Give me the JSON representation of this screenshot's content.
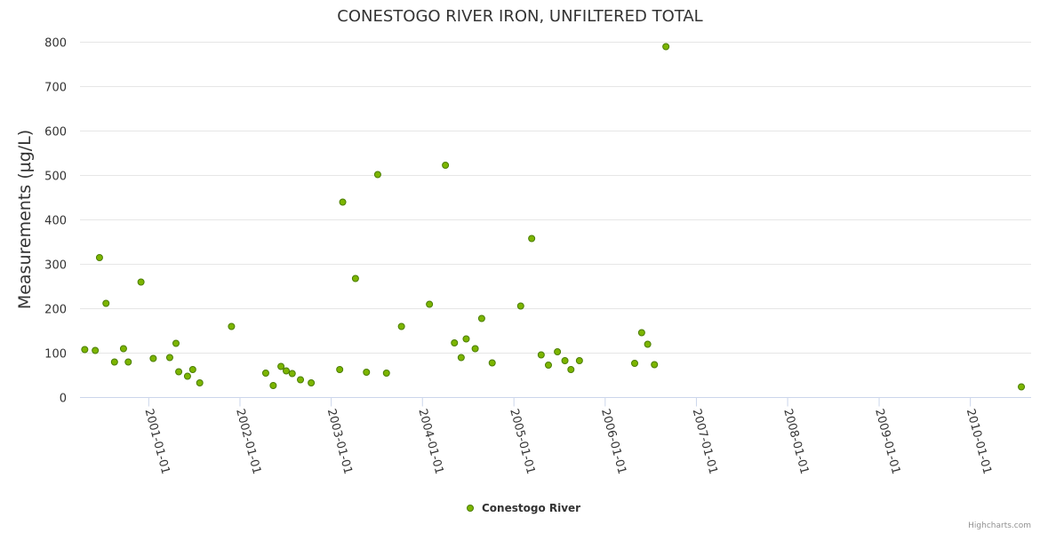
{
  "chart_data": {
    "type": "scatter",
    "title": "CONESTOGO RIVER IRON, UNFILTERED TOTAL",
    "xlabel": "",
    "ylabel": "Measurements (µg/L)",
    "ylim": [
      0,
      800
    ],
    "xlim": [
      "2000-04-01",
      "2010-09-01"
    ],
    "yticks": [
      "0",
      "100",
      "200",
      "300",
      "400",
      "500",
      "600",
      "700",
      "800"
    ],
    "xticks": [
      "2001-01-01",
      "2002-01-01",
      "2003-01-01",
      "2004-01-01",
      "2005-01-01",
      "2006-01-01",
      "2007-01-01",
      "2008-01-01",
      "2009-01-01",
      "2010-01-01"
    ],
    "grid": true,
    "legend_position": "bottom-center",
    "series": [
      {
        "name": "Conestogo River",
        "color": "#7cb500",
        "edge_color": "#4a7d00",
        "points": [
          [
            "2000-04-20",
            108
          ],
          [
            "2000-06-01",
            106
          ],
          [
            "2000-06-18",
            315
          ],
          [
            "2000-07-14",
            212
          ],
          [
            "2000-08-17",
            80
          ],
          [
            "2000-09-22",
            110
          ],
          [
            "2000-10-11",
            80
          ],
          [
            "2000-12-01",
            260
          ],
          [
            "2001-01-19",
            88
          ],
          [
            "2001-03-26",
            90
          ],
          [
            "2001-04-20",
            122
          ],
          [
            "2001-05-01",
            58
          ],
          [
            "2001-06-05",
            48
          ],
          [
            "2001-06-26",
            63
          ],
          [
            "2001-07-24",
            33
          ],
          [
            "2001-11-28",
            160
          ],
          [
            "2002-04-14",
            55
          ],
          [
            "2002-05-14",
            27
          ],
          [
            "2002-06-14",
            70
          ],
          [
            "2002-07-05",
            60
          ],
          [
            "2002-07-29",
            54
          ],
          [
            "2002-08-31",
            40
          ],
          [
            "2002-10-13",
            33
          ],
          [
            "2003-02-04",
            63
          ],
          [
            "2003-02-16",
            440
          ],
          [
            "2003-04-08",
            268
          ],
          [
            "2003-05-22",
            57
          ],
          [
            "2003-07-06",
            502
          ],
          [
            "2003-08-10",
            55
          ],
          [
            "2003-10-09",
            160
          ],
          [
            "2004-01-29",
            210
          ],
          [
            "2004-04-02",
            523
          ],
          [
            "2004-05-08",
            123
          ],
          [
            "2004-06-04",
            90
          ],
          [
            "2004-06-24",
            132
          ],
          [
            "2004-07-30",
            110
          ],
          [
            "2004-08-25",
            178
          ],
          [
            "2004-10-06",
            78
          ],
          [
            "2005-01-28",
            206
          ],
          [
            "2005-03-13",
            358
          ],
          [
            "2005-04-20",
            96
          ],
          [
            "2005-05-19",
            73
          ],
          [
            "2005-06-24",
            103
          ],
          [
            "2005-07-24",
            83
          ],
          [
            "2005-08-17",
            63
          ],
          [
            "2005-09-20",
            83
          ],
          [
            "2006-04-29",
            77
          ],
          [
            "2006-05-27",
            146
          ],
          [
            "2006-06-20",
            120
          ],
          [
            "2006-07-17",
            74
          ],
          [
            "2006-09-01",
            790
          ],
          [
            "2010-07-24",
            24
          ]
        ]
      }
    ]
  },
  "credits": "Highcharts.com"
}
